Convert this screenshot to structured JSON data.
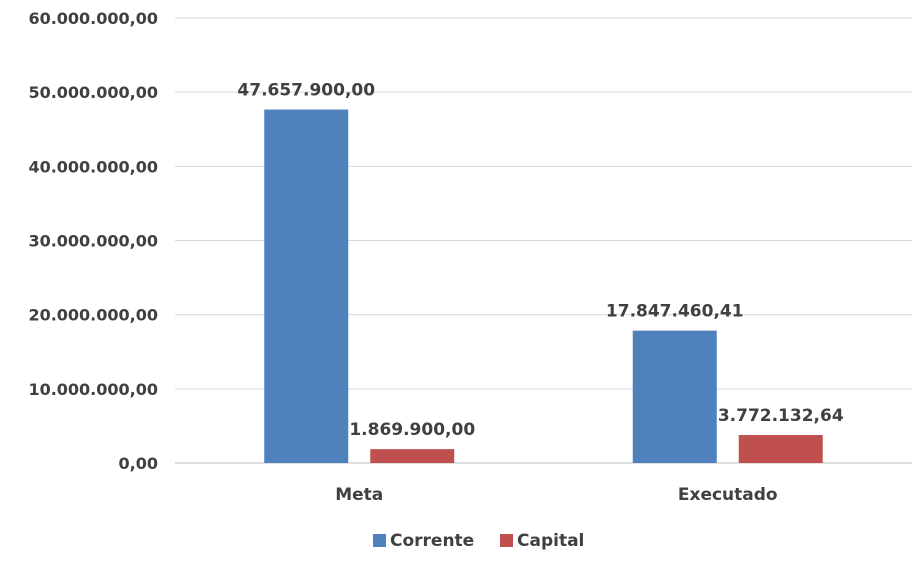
{
  "chart_data": {
    "type": "bar",
    "categories": [
      "Meta",
      "Executado"
    ],
    "series": [
      {
        "name": "Corrente",
        "color": "#4f81bd",
        "values": [
          47657900.0,
          17847460.41
        ],
        "labels": [
          "47.657.900,00",
          "17.847.460,41"
        ]
      },
      {
        "name": "Capital",
        "color": "#c0504d",
        "values": [
          1869900.0,
          3772132.64
        ],
        "labels": [
          "1.869.900,00",
          "3.772.132,64"
        ]
      }
    ],
    "ylim": [
      0,
      60000000
    ],
    "yticks": [
      0,
      10000000,
      20000000,
      30000000,
      40000000,
      50000000,
      60000000
    ],
    "ytick_labels": [
      "0,00",
      "10.000.000,00",
      "20.000.000,00",
      "30.000.000,00",
      "40.000.000,00",
      "50.000.000,00",
      "60.000.000,00"
    ],
    "grid": true,
    "legend": "bottom",
    "title": "",
    "xlabel": "",
    "ylabel": ""
  }
}
